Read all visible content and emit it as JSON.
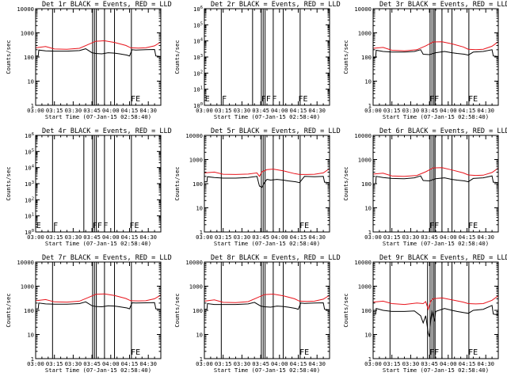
{
  "figure": {
    "xlabel": "Start Time (07-Jan-15 02:58:40)",
    "ylabel": "Counts/sec",
    "legend": "BLACK = Events, RED = LLD",
    "series_colors": {
      "events": "#000000",
      "lld": "#e8141c"
    }
  },
  "chart_data": [
    {
      "type": "line",
      "title": "Det 1r BLACK = Events, RED = LLD",
      "xlim": [
        0,
        100
      ],
      "xunit": "minutes after 03:00",
      "xticks": [
        "03:00",
        "03:15",
        "03:30",
        "03:45",
        "04:00",
        "04:15",
        "04:30"
      ],
      "xtick_minutes": [
        0,
        15,
        30,
        45,
        60,
        75,
        90
      ],
      "ylim": [
        1,
        10000
      ],
      "yscale": "log",
      "yticks": [
        "1",
        "10",
        "100",
        "1000",
        "10000"
      ],
      "vlines_minutes": [
        13.5,
        45.5,
        47,
        48.5,
        55,
        63,
        76.5
      ],
      "flags": [
        {
          "text": "FE",
          "minute": 76
        }
      ],
      "series": [
        {
          "name": "Events",
          "color": "#000000",
          "x": [
            0,
            2,
            2.5,
            8,
            15,
            25,
            35,
            40,
            45,
            48,
            53,
            58,
            63,
            67,
            73,
            75,
            77,
            80,
            88,
            95,
            96,
            100
          ],
          "y": [
            110,
            110,
            195,
            180,
            175,
            175,
            185,
            220,
            150,
            140,
            135,
            150,
            145,
            135,
            120,
            110,
            200,
            195,
            200,
            205,
            110,
            105
          ]
        },
        {
          "name": "LLD",
          "color": "#e8141c",
          "x": [
            0,
            8,
            15,
            25,
            35,
            42,
            48,
            55,
            63,
            72,
            76,
            82,
            88,
            95,
            100
          ],
          "y": [
            240,
            270,
            215,
            210,
            230,
            330,
            450,
            470,
            400,
            300,
            240,
            235,
            240,
            290,
            420
          ]
        }
      ]
    },
    {
      "type": "line",
      "title": "Det 2r BLACK = Events, RED = LLD",
      "xlim": [
        0,
        100
      ],
      "xunit": "minutes after 03:00",
      "xticks": [
        "03:00",
        "03:15",
        "03:30",
        "03:45",
        "04:00",
        "04:15",
        "04:30"
      ],
      "xtick_minutes": [
        0,
        15,
        30,
        45,
        60,
        75,
        90
      ],
      "ylim": [
        1,
        1000000
      ],
      "yscale": "log",
      "yticks": [
        "10^0",
        "10^1",
        "10^2",
        "10^3",
        "10^4",
        "10^5",
        "10^6"
      ],
      "vlines_minutes": [
        13.5,
        38.5,
        45.5,
        47,
        48.5,
        55,
        63,
        76.5
      ],
      "flags": [
        {
          "text": "E",
          "minute": 0.5
        },
        {
          "text": "F",
          "minute": 14
        },
        {
          "text": "FF",
          "minute": 45.5
        },
        {
          "text": "F",
          "minute": 54
        },
        {
          "text": "FE",
          "minute": 75
        }
      ],
      "series": []
    },
    {
      "type": "line",
      "title": "Det 3r BLACK = Events, RED = LLD",
      "xlim": [
        0,
        100
      ],
      "xunit": "minutes after 03:00",
      "xticks": [
        "03:00",
        "03:15",
        "03:30",
        "03:45",
        "04:00",
        "04:15",
        "04:30"
      ],
      "xtick_minutes": [
        0,
        15,
        30,
        45,
        60,
        75,
        90
      ],
      "ylim": [
        1,
        10000
      ],
      "yscale": "log",
      "yticks": [
        "1",
        "10",
        "100",
        "1000",
        "10000"
      ],
      "vlines_minutes": [
        13.5,
        45.5,
        47,
        48.5,
        49.5,
        55,
        63,
        76.5
      ],
      "flags": [
        {
          "text": "FF",
          "minute": 45
        },
        {
          "text": "FE",
          "minute": 76
        }
      ],
      "series": [
        {
          "name": "Events",
          "color": "#000000",
          "x": [
            0,
            2,
            2.5,
            8,
            15,
            25,
            33,
            38,
            40,
            45,
            50,
            57,
            63,
            67,
            73,
            76,
            80,
            88,
            95,
            96,
            100
          ],
          "y": [
            95,
            95,
            190,
            170,
            160,
            160,
            170,
            200,
            130,
            125,
            150,
            170,
            150,
            140,
            130,
            120,
            160,
            170,
            200,
            110,
            105
          ]
        },
        {
          "name": "LLD",
          "color": "#e8141c",
          "x": [
            0,
            8,
            15,
            25,
            35,
            42,
            48,
            55,
            63,
            72,
            76,
            82,
            88,
            95,
            100
          ],
          "y": [
            230,
            250,
            190,
            180,
            200,
            290,
            420,
            430,
            350,
            260,
            210,
            200,
            210,
            280,
            430
          ]
        }
      ]
    },
    {
      "type": "line",
      "title": "Det 4r BLACK = Events, RED = LLD",
      "xlim": [
        0,
        100
      ],
      "xunit": "minutes after 03:00",
      "xticks": [
        "03:00",
        "03:15",
        "03:30",
        "03:45",
        "04:00",
        "04:15",
        "04:30"
      ],
      "xtick_minutes": [
        0,
        15,
        30,
        45,
        60,
        75,
        90
      ],
      "ylim": [
        1,
        1000000
      ],
      "yscale": "log",
      "yticks": [
        "10^0",
        "10^1",
        "10^2",
        "10^3",
        "10^4",
        "10^5",
        "10^6"
      ],
      "vlines_minutes": [
        13.5,
        38.5,
        45.5,
        47,
        48.5,
        55,
        63,
        76.5
      ],
      "flags": [
        {
          "text": "E",
          "minute": 0.5
        },
        {
          "text": "F",
          "minute": 14
        },
        {
          "text": "FF",
          "minute": 45.5
        },
        {
          "text": "F",
          "minute": 54
        },
        {
          "text": "FE",
          "minute": 75
        }
      ],
      "series": []
    },
    {
      "type": "line",
      "title": "Det 5r BLACK = Events, RED = LLD",
      "xlim": [
        0,
        100
      ],
      "xunit": "minutes after 03:00",
      "xticks": [
        "03:00",
        "03:15",
        "03:30",
        "03:45",
        "04:00",
        "04:15",
        "04:30"
      ],
      "xtick_minutes": [
        0,
        15,
        30,
        45,
        60,
        75,
        90
      ],
      "ylim": [
        1,
        10000
      ],
      "yscale": "log",
      "yticks": [
        "1",
        "10",
        "100",
        "1000",
        "10000"
      ],
      "vlines_minutes": [
        13.5,
        45.5,
        47,
        48.5,
        55,
        63,
        76.5
      ],
      "flags": [
        {
          "text": "FE",
          "minute": 76
        }
      ],
      "series": [
        {
          "name": "Events",
          "color": "#000000",
          "x": [
            0,
            2,
            2.5,
            8,
            15,
            25,
            35,
            42,
            44,
            46,
            48,
            50,
            53,
            58,
            63,
            67,
            73,
            76,
            80,
            88,
            95,
            96,
            100
          ],
          "y": [
            120,
            120,
            195,
            180,
            170,
            170,
            180,
            200,
            80,
            70,
            110,
            150,
            140,
            150,
            140,
            130,
            120,
            110,
            200,
            195,
            200,
            115,
            110
          ]
        },
        {
          "name": "LLD",
          "color": "#e8141c",
          "x": [
            0,
            8,
            15,
            25,
            35,
            42,
            44,
            46,
            50,
            55,
            63,
            72,
            76,
            82,
            88,
            95,
            100
          ],
          "y": [
            280,
            300,
            245,
            240,
            250,
            280,
            200,
            310,
            380,
            400,
            340,
            260,
            240,
            240,
            245,
            280,
            420
          ]
        }
      ]
    },
    {
      "type": "line",
      "title": "Det 6r BLACK = Events, RED = LLD",
      "xlim": [
        0,
        100
      ],
      "xunit": "minutes after 03:00",
      "xticks": [
        "03:00",
        "03:15",
        "03:30",
        "03:45",
        "04:00",
        "04:15",
        "04:30"
      ],
      "xtick_minutes": [
        0,
        15,
        30,
        45,
        60,
        75,
        90
      ],
      "ylim": [
        1,
        10000
      ],
      "yscale": "log",
      "yticks": [
        "1",
        "10",
        "100",
        "1000",
        "10000"
      ],
      "vlines_minutes": [
        13.5,
        45.5,
        47,
        48.5,
        49.5,
        55,
        63,
        76.5
      ],
      "flags": [
        {
          "text": "FF",
          "minute": 45
        },
        {
          "text": "FE",
          "minute": 76
        }
      ],
      "series": [
        {
          "name": "Events",
          "color": "#000000",
          "x": [
            0,
            2,
            2.5,
            8,
            15,
            25,
            33,
            38,
            40,
            45,
            50,
            57,
            63,
            67,
            73,
            76,
            80,
            88,
            95,
            96,
            100
          ],
          "y": [
            100,
            100,
            200,
            180,
            165,
            160,
            175,
            210,
            135,
            130,
            160,
            175,
            150,
            140,
            130,
            120,
            165,
            175,
            210,
            115,
            110
          ]
        },
        {
          "name": "LLD",
          "color": "#e8141c",
          "x": [
            0,
            8,
            15,
            25,
            35,
            42,
            48,
            55,
            63,
            72,
            76,
            82,
            88,
            95,
            100
          ],
          "y": [
            250,
            270,
            210,
            200,
            220,
            310,
            450,
            460,
            370,
            280,
            230,
            220,
            225,
            290,
            440
          ]
        }
      ]
    },
    {
      "type": "line",
      "title": "Det 7r BLACK = Events, RED = LLD",
      "xlim": [
        0,
        100
      ],
      "xunit": "minutes after 03:00",
      "xticks": [
        "03:00",
        "03:15",
        "03:30",
        "03:45",
        "04:00",
        "04:15",
        "04:30"
      ],
      "xtick_minutes": [
        0,
        15,
        30,
        45,
        60,
        75,
        90
      ],
      "ylim": [
        1,
        10000
      ],
      "yscale": "log",
      "yticks": [
        "1",
        "10",
        "100",
        "1000",
        "10000"
      ],
      "vlines_minutes": [
        13.5,
        45.5,
        47,
        48.5,
        55,
        63,
        76.5
      ],
      "flags": [
        {
          "text": "FE",
          "minute": 76
        }
      ],
      "series": [
        {
          "name": "Events",
          "color": "#000000",
          "x": [
            0,
            2,
            2.5,
            8,
            15,
            25,
            35,
            40,
            45,
            48,
            53,
            58,
            63,
            67,
            73,
            75,
            77,
            80,
            88,
            95,
            96,
            100
          ],
          "y": [
            115,
            115,
            200,
            185,
            180,
            180,
            190,
            225,
            155,
            145,
            140,
            155,
            150,
            140,
            125,
            115,
            205,
            200,
            205,
            210,
            115,
            110
          ]
        },
        {
          "name": "LLD",
          "color": "#e8141c",
          "x": [
            0,
            8,
            15,
            25,
            35,
            42,
            48,
            55,
            63,
            72,
            76,
            82,
            88,
            95,
            100
          ],
          "y": [
            250,
            280,
            225,
            220,
            240,
            340,
            460,
            480,
            410,
            310,
            250,
            245,
            250,
            300,
            430
          ]
        }
      ]
    },
    {
      "type": "line",
      "title": "Det 8r BLACK = Events, RED = LLD",
      "xlim": [
        0,
        100
      ],
      "xunit": "minutes after 03:00",
      "xticks": [
        "03:00",
        "03:15",
        "03:30",
        "03:45",
        "04:00",
        "04:15",
        "04:30"
      ],
      "xtick_minutes": [
        0,
        15,
        30,
        45,
        60,
        75,
        90
      ],
      "ylim": [
        1,
        10000
      ],
      "yscale": "log",
      "yticks": [
        "1",
        "10",
        "100",
        "1000",
        "10000"
      ],
      "vlines_minutes": [
        13.5,
        45.5,
        47,
        48.5,
        55,
        63,
        76.5
      ],
      "flags": [
        {
          "text": "FE",
          "minute": 76
        }
      ],
      "series": [
        {
          "name": "Events",
          "color": "#000000",
          "x": [
            0,
            2,
            2.5,
            8,
            15,
            25,
            35,
            40,
            45,
            48,
            53,
            58,
            63,
            67,
            73,
            75,
            77,
            80,
            88,
            95,
            96,
            100
          ],
          "y": [
            110,
            110,
            190,
            175,
            175,
            175,
            185,
            215,
            150,
            140,
            135,
            150,
            145,
            135,
            120,
            110,
            200,
            195,
            200,
            205,
            110,
            105
          ]
        },
        {
          "name": "LLD",
          "color": "#e8141c",
          "x": [
            0,
            8,
            15,
            25,
            35,
            42,
            48,
            55,
            63,
            72,
            76,
            82,
            88,
            95,
            100
          ],
          "y": [
            240,
            270,
            215,
            210,
            230,
            330,
            450,
            470,
            400,
            300,
            240,
            235,
            240,
            290,
            420
          ]
        }
      ]
    },
    {
      "type": "line",
      "title": "Det 9r BLACK = Events, RED = LLD",
      "xlim": [
        0,
        100
      ],
      "xunit": "minutes after 03:00",
      "xticks": [
        "03:00",
        "03:15",
        "03:30",
        "03:45",
        "04:00",
        "04:15",
        "04:30"
      ],
      "xtick_minutes": [
        0,
        15,
        30,
        45,
        60,
        75,
        90
      ],
      "ylim": [
        1,
        10000
      ],
      "yscale": "log",
      "yticks": [
        "1",
        "10",
        "100",
        "1000",
        "10000"
      ],
      "vlines_minutes": [
        13.5,
        43.5,
        45.5,
        47,
        48.5,
        49.5,
        55,
        63,
        76.5
      ],
      "flags": [
        {
          "text": "FF",
          "minute": 45
        },
        {
          "text": "FE",
          "minute": 76
        }
      ],
      "series": [
        {
          "name": "Events",
          "color": "#000000",
          "x": [
            0,
            2,
            2.5,
            8,
            15,
            25,
            33,
            38,
            40,
            42,
            44,
            45,
            46,
            47,
            49,
            50,
            57,
            63,
            67,
            73,
            76,
            80,
            88,
            95,
            96,
            100
          ],
          "y": [
            70,
            70,
            120,
            100,
            90,
            90,
            95,
            60,
            30,
            60,
            12,
            8,
            40,
            100,
            35,
            90,
            120,
            100,
            90,
            80,
            75,
            100,
            110,
            160,
            70,
            65
          ]
        },
        {
          "name": "LLD",
          "color": "#e8141c",
          "x": [
            0,
            8,
            15,
            25,
            35,
            40,
            42,
            44,
            46,
            48,
            55,
            63,
            72,
            76,
            82,
            88,
            95,
            100
          ],
          "y": [
            220,
            240,
            190,
            175,
            200,
            190,
            230,
            110,
            240,
            300,
            330,
            270,
            220,
            190,
            185,
            190,
            260,
            400
          ]
        }
      ]
    }
  ]
}
